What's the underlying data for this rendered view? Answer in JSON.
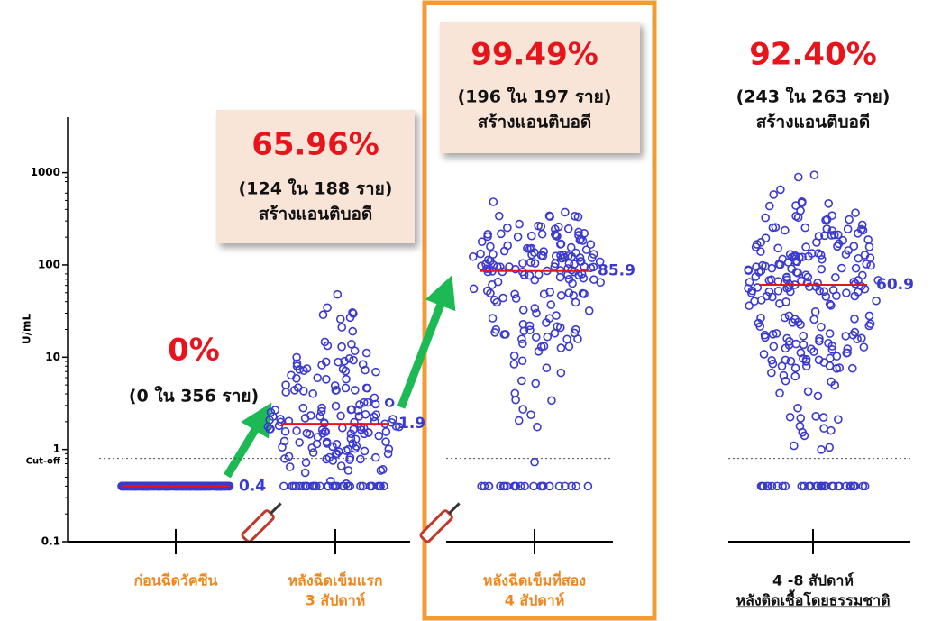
{
  "chart_data": {
    "type": "dotplot",
    "ylabel": "U/mL",
    "log": true,
    "ylim": [
      0.1,
      4000
    ],
    "yticks": [
      0.1,
      1,
      10,
      100,
      1000
    ],
    "cutoff": {
      "value": 0.8,
      "label": "Cut-off"
    },
    "dot_color": "#3a3ad0",
    "median_color": "#e8141b",
    "groups": [
      {
        "category": [
          "ก่อนฉีดวัคซีน"
        ],
        "rate": "0%",
        "note": [
          "(0 ใน 356 ราย)"
        ],
        "n": 356,
        "min": 0.4,
        "max": 0.4,
        "median": 0.4,
        "label_color": "#f0861e"
      },
      {
        "category": [
          "หลังฉีดเข็มแรก",
          "3 สัปดาห์"
        ],
        "rate": "65.96%",
        "note": [
          "(124 ใน 188 ราย)",
          "สร้างแอนติบอดี"
        ],
        "n": 188,
        "min": 0.4,
        "max": 90,
        "median": 1.9,
        "label_color": "#f0861e"
      },
      {
        "category": [
          "หลังฉีดเข็มที่สอง",
          "4 สัปดาห์"
        ],
        "rate": "99.49%",
        "note": [
          "(196 ใน 197 ราย)",
          "สร้างแอนติบอดี"
        ],
        "n": 197,
        "min": 0.4,
        "max": 600,
        "median": 85.9,
        "label_color": "#f0861e"
      },
      {
        "category": [
          "4 -8 สัปดาห์",
          "หลังติดเชื้อโดยธรรมชาติ"
        ],
        "rate": "92.40%",
        "note": [
          "(243 ใน 263 ราย)",
          "สร้างแอนติบอดี"
        ],
        "n": 263,
        "min": 0.4,
        "max": 1500,
        "median": 60.9,
        "label_color": "#111111"
      }
    ]
  }
}
